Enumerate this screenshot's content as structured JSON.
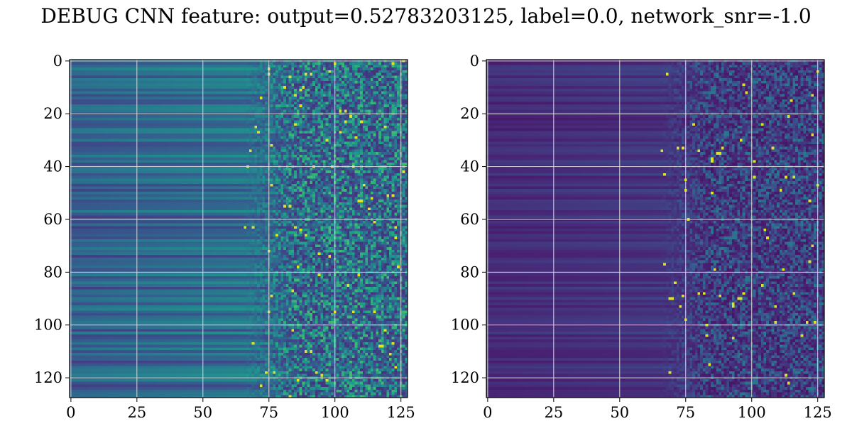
{
  "title": "DEBUG CNN feature: output=0.52783203125, label=0.0, network_snr=-1.0",
  "colormap": "viridis",
  "grid_color": "#d9d9d9",
  "chart_data": [
    {
      "type": "heatmap",
      "panel": "left",
      "title": "",
      "xlabel": "",
      "ylabel": "",
      "xlim": [
        0,
        127
      ],
      "ylim": [
        127,
        0
      ],
      "grid": true,
      "rows": 128,
      "cols": 128,
      "xticks": [
        0,
        25,
        50,
        75,
        100,
        125
      ],
      "yticks": [
        0,
        20,
        40,
        60,
        80,
        100,
        120
      ],
      "xtick_labels": [
        "0",
        "25",
        "50",
        "75",
        "100",
        "125"
      ],
      "ytick_labels": [
        "0",
        "20",
        "40",
        "60",
        "80",
        "100",
        "120"
      ],
      "description_of_values": "smooth horizontal banding on columns 0-70, noisy speckled high values on columns 75-127",
      "base_level": 0.3,
      "noise_level": 0.55
    },
    {
      "type": "heatmap",
      "panel": "right",
      "title": "",
      "xlabel": "",
      "ylabel": "",
      "xlim": [
        0,
        127
      ],
      "ylim": [
        127,
        0
      ],
      "grid": true,
      "rows": 128,
      "cols": 128,
      "xticks": [
        0,
        25,
        50,
        75,
        100,
        125
      ],
      "yticks": [
        0,
        20,
        40,
        60,
        80,
        100,
        120
      ],
      "xtick_labels": [
        "0",
        "25",
        "50",
        "75",
        "100",
        "125"
      ],
      "ytick_labels": [
        "0",
        "20",
        "40",
        "60",
        "80",
        "100",
        "120"
      ],
      "description_of_values": "dark purple banding on columns 0-70, sparse speckles on columns 75-127",
      "base_level": 0.12,
      "noise_level": 0.35
    }
  ]
}
